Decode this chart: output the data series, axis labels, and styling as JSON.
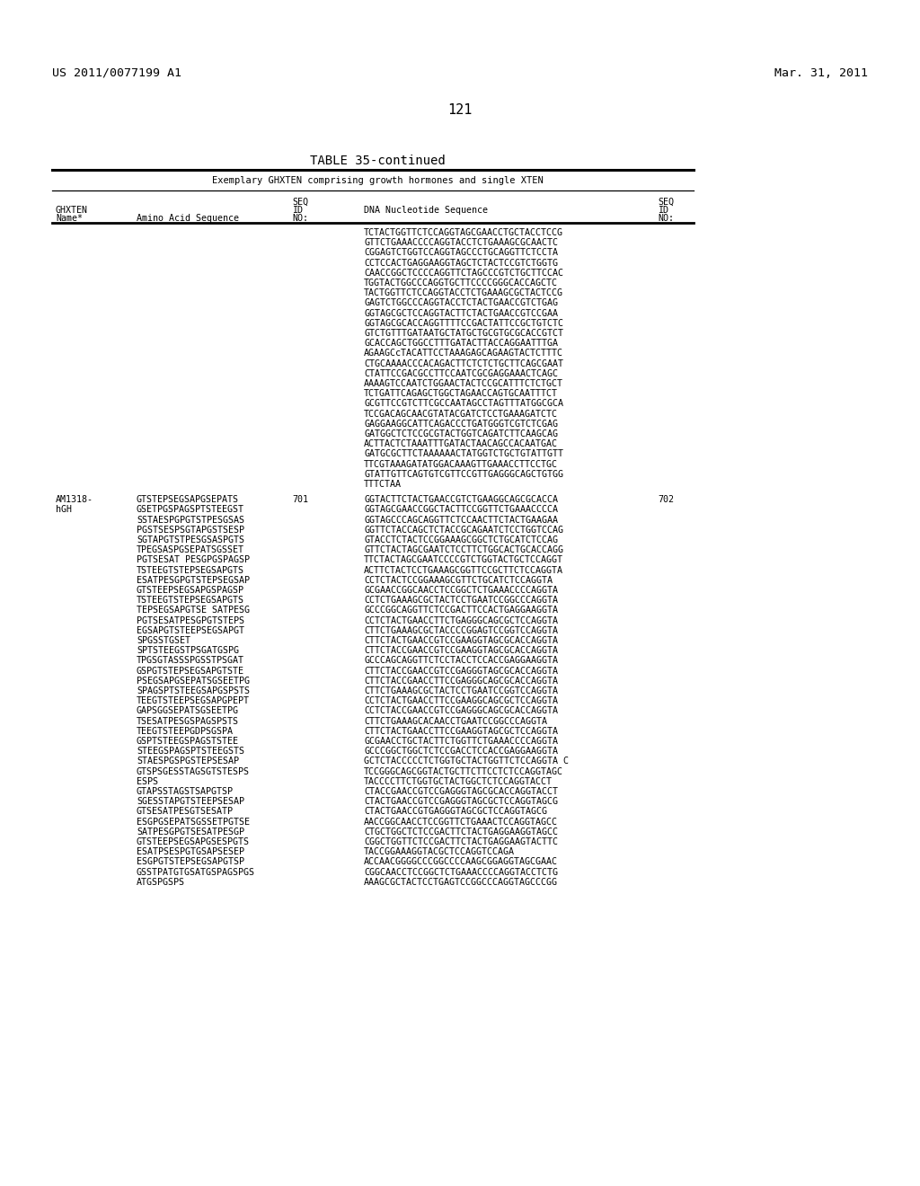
{
  "header_left": "US 2011/0077199 A1",
  "header_right": "Mar. 31, 2011",
  "page_number": "121",
  "table_title": "TABLE 35-continued",
  "table_subtitle": "Exemplary GHXTEN comprising growth hormones and single XTEN",
  "dna_continuation": [
    "TCTACTGGTTCTCCAGGTAGCGAACCTGCTACCTCCG",
    "GTTCTGAAACCCCAGGTACCTCTGAAAGCGCAACTC",
    "CGGAGTCTGGTCCAGGTAGCCCTGCAGGTTCTCCTA",
    "CCTCCACTGAGGAAGGTAGCTCTACTCCGTCTGGTG",
    "CAACCGGCTCCCCAGGTTCTAGCCCGTCTGCTTCCAC",
    "TGGTACTGGCCCAGGTGCTTCCCCGGGCACCAGCTC",
    "TACTGGTTCTCCAGGTACCTCTGAAAGCGCTACTCCG",
    "GAGTCTGGCCCAGGTACCTCTACTGAACCGTCTGAG",
    "GGTAGCGCTCCAGGTACTTCTACTGAACCGTCCGAA",
    "GGTAGCGCACCAGGTTTTCCGACTATTCCGCTGTCTC",
    "GTCTGTTTGATAATGCTATGCTGCGTGCGCACCGTCT",
    "GCACCAGCTGGCCTTTGATACTTACCAGGAATTTGA",
    "AGAAGCcTACATTCCTAAAGAGCAGAAGTACTCTTTC",
    "CTGCAAAACCCACAGACTTCTCTCTGCTTCAGCGAAT",
    "CTATTCCGACGCCTTCCAATCGCGAGGAAACTCAGC",
    "AAAAGTCCAATCTGGAACTACTCCGCATTTCTCTGCT",
    "TCTGATTCAGAGCTGGCTAGAACCAGTGCAATTTCT",
    "GCGTTCCGTCTTCGCCAATAGCCTAGTTTATGGCGCA",
    "TCCGACAGCAACGTATACGATCTCCTGAAAGATCTC",
    "GAGGAAGGCATTCAGACCCTGATGGGTCGTCTCGAG",
    "GATGGCTCTCCGCGTACTGGTCAGATCTTCAAGCAG",
    "ACTTACTCTAAATTTGATACTAACAGCCACAATGAC",
    "GATGCGCTTCTAAAAAACTATGGTCTGCTGTATTGTT",
    "TTCGTAAAGATATGGACAAAGTTGAAACCTTCCTGC",
    "GTATTGTTCAGTGTCGTTCCGTTGAGGGCAGCTGTGG",
    "TTTCTAA"
  ],
  "am1318_aa_lines": [
    "GTSTEPSEGSAPGSEPATS",
    "GSETPGSPAGSPTSTEEGST",
    "SSTAESPGPGTSTPESGSAS",
    "PGSTSESPSGTAPGSTSESP",
    "SGTAPGTSTPESGSASPGTS",
    "TPEGSASPGSEPATSGSSET",
    "PGTSESAT PESGPGSPAGSP",
    "TSTEEGTSTEPSEGSAPGTS",
    "ESATPESGPGTSTEEPSEGSAP",
    "PGTSTEPSEGSAPGSPAGSP",
    "TSTEEGTSTEPSEGSAPGTS",
    "TEPSEGSAPGTSESAT PESG",
    "PGTSESATPESGPGTEPS",
    "EGSAPGTSTEEPSEGSAPGT",
    "SPGSSTGSET",
    "SPTSTEEGSTPSGATGSPG",
    "TPGSGTASSSPGSSTPSGAT",
    "GSPGTSTEEPSEGSAPGTSTE",
    "PSEGSAPGSEPATSGSEETPG",
    "SPAGSPTSTEEG SAPGSPSTS",
    "TEEGTSTEEPSEGSAPGPEPT",
    "GAPSGGSEPATSGSEETPG",
    "TSESATPESGSPAGSPSTS",
    "TEEGTSTEEPGDPSGSPA",
    "GSPTSTEEGSPAGSTSTEE",
    "STEEG SPAGSPGSTSTEE GTS",
    "STAESPGSPGSTEPSESAP",
    "GTSPSGESSTAGSGTSTESPS",
    "ESPS",
    "GTAPSSTAGSTSAPGTSP",
    "SGESSTAPGTSTEEPSEESAP",
    "GTSEESAPEGSEEPATSEETP",
    "ESGPGSEPATSGSTPGTSE",
    "SATPESGPGTSESATPESGP",
    "GTSTEEPSEGSAPGSESPGTS",
    "ESAT PSESPGTGSAPSESEP",
    "ESGPGTSTEEPSEGSAPGTSP",
    "GSSTPATGTGSATGSPAGSPGS",
    "ATGSPGSPS"
  ],
  "am1318_aa_lines_exact": [
    "GTSTEPSEGSAPGSEPATS",
    "GSETPGSPAGSPTSTEEGST",
    "SSTAESPGPGTSTPESGSAS",
    "PGSTSESPSGTAPGSTSESP",
    "SGTAPGTSTPESGSASPGTS",
    "TPEGSASPGSEPATSGSSET",
    "PGTSESAT PESGPGSPAGSP",
    "TSTEEGTSTEPSEGSAPGTS",
    "ESATPESGPGTSTEPSEGS A",
    "PGTSTEPSEGSAPGSPAGSP",
    "TSTEEGTSTEPSEGSAPGTS",
    "TEPSEGSAPGTSE SATPESG",
    "PGTSESATPESGPGTEPS",
    "EGSAPGTSTEEPSEGSAPGT",
    "SPGSSTGSET",
    "SPTSTEEGSTPSGATGSPG",
    "TPGSGTASSSPGSSTPSGAT",
    "GSPGTSTEPSEGSAPGTSTE",
    "PSEGSAPGSEPATSGS ETPG",
    "SPAGSPTSTEEG SAPGSPSTS",
    "TEEGTSTEEPSEGSAPGPEPT",
    "GAPSGGSEPATSGSEE TPG",
    "TSESATPESGSPAGSPSTS",
    "TEEGTSTEEPGDPSGSPA",
    "GSPTSTEEGSPAGSTSTEE",
    "STEEGSPAGSPTSTEEGSTS",
    "STAESPGSPGSTEPSESAP",
    "GTSPSGESSTAGSGTSTESPS",
    "ESPS",
    "GTAPSSTAGSTSAPGTSP",
    "SGESSTAPGTSTEEPSEESAP",
    "GTSEESAPEGSEEPATSEETP",
    "ESGPGSEPATSGSTPGTSE",
    "SATPESGPGTSESATPESGP",
    "GTSTEEPSEGSAPGSESPGTS",
    "ESATPSESPGTGSAPSESEP",
    "ESGPGTSTEEPSEGSAPGTSP",
    "GSSTPATGTGSATGSPAGSPGS",
    "ATGSPGSPS"
  ],
  "am1318_aa_real": [
    "GTSTEPSEGSAPGSEPATS",
    "GSETPGSPAGSPTSTEEGST",
    "SSTAESPGPGTSTPESGSAS",
    "PGSTSESPSGTAPGSTSESP",
    "SGTAPGTSTPESGSASPGTS",
    "TPEGSASPGSEPATSGSSET",
    "PGTSESATPESGPGSPAGSP",
    "TSTEEGTSTEPSEGSAPGTS",
    "ESATPEGPGTSTEPSEGS A",
    "PGTSTEPSEGSAPGSPAGSP",
    "TSTEEGTSTEPSEGSAPGTS",
    "TEPSEGSAPGTSESATPESG",
    "PGTSESATPESGPGTEPS",
    "EGSAPGTSTEEPSEGSAPGT",
    "SPGSSTGSET",
    "SPTSTEEGSTPSGATGSPG",
    "TPGSGTASSSPGSSTPSGAT",
    "GSPGTSTEPSEGSAPGTSTE",
    "PSEGSAPGSEPATSGSEETPG",
    "SPAGSPTSTEEG SAPGSPSTS",
    "TEEGTSTEEPSEGSAPGPEPT",
    "GAPSGGSEPATSGSEETPG",
    "TSESATPESGSPAGSPSTS",
    "TEEGTSTEEPGDPSGSPA",
    "GSPTSTEEGSPAGSTSTEE",
    "STEEGSPAGSPTSTEEGSTS",
    "STAESPGSPGSTEPSESAP",
    "GTSPSGESSTAGSGTSTESPS",
    "ESPS",
    "GTAPSSTAGSTSAPGTSP",
    "SGESSTAPGTSTEEPSEESAP",
    "GTSEESAPEGSEEPATSEETP",
    "ESGPGSEPATSGSTPGTSE",
    "SATPESGPGTSESATPESGP",
    "GTSTEEPSEGSAPGSESPGTS",
    "ESATPSESPGTGSAPSESEP",
    "ESGPGTSTEEPSEGSAPGTSP",
    "GSSTPATGTGSATGSPAGSPGS",
    "ATGSPGSPS"
  ],
  "am1318_dna_lines": [
    "GGTACTTCTACTGAACCGTCTGAAGGCAGCGCACCA",
    "GGTAGCGAACCGGCTACTTTCCGGTTCTGAAACCCCA",
    "GGTAGCCCAGCAGGTTCTCCAACTTCTACTGAAGAA",
    "GGTTCTACCAGCTCTACCGCAGAATCTCCTGGTCCAG",
    "GTACCTCTACTCCGGAAAGCGGCTCTGCATCTCCAG",
    "GTTCTACTAGCGAATCTCCTTCTGGCACTGCACCAGG",
    "TTCTACTAGCGAATCCCCGTCTGGTACTGCTCCAGGT",
    "ACTTCTACTCCTGAAAGCGGTTCCGCTTCTCCAGGTA",
    "CCTCTACTCCGGAAAGCGGTTCTGCATCTCCAGGTA",
    "GCGAACCGGCAACCTCCGGCTCTGAAACCCCAGGTA",
    "CCTCTGAAAGCGCTACTCCTGAATCCGGCCCAGGTA",
    "GCCCGGCAGGTTCTCCGACTTCCACTGAGGAAGGTA",
    "CCTCTACTGAACCTTCTGAGGGCAGCGCTCCAGGTA",
    "CTTCTAAAGCGCTACCCCGGAGTCCGGTCCAGGTA",
    "CTTCTACTGAACCGTCCGAAGGTAGCGCACCAGGTA",
    "CTTCTACTGAACCGTCCGAAGGTAGCGCACCAGGTA",
    "GCCCAGCAGGTTCTCCTACCTCCACCGAGGAAGGTA",
    "CTTCTACCGAACCGTCCGAGGGTAGCGCACCAGGTA",
    "CTTCTACCGAACCTTCCGAGGGCAGCGCACCAGGTA",
    "CTTCTGAAAGCGCTACTCCTGAATCCGGTCCAGGTA",
    "CCTCTACTGAACCTTCCGAAGGCAGCGCTCCAGGTA",
    "CCTCTACCGAACCGTCCGAGGGCAGCGCACCAGGTA",
    "CTTCTGAAAGCGCAACCTGAATCCGGCCCAGGTA",
    "CTTCTACTGAACCTTCCGAAGGTAGCGCTCCAGGTA",
    "GCGAACCTGCTACTTCTGGTTCTGAAACCCCAGGTA",
    "GCCCGGCTGGCTCTCCGACCTCCACCGAGGAAGGTA",
    "GCTCTACCCCCTCTGGTGCTACTGGTTCTCCAGGTAC",
    "TCCGGGCAGCGGTACTGCTTCTTCCTCTCCAGGTAGC",
    "TACCCCTTCTGGTGCTACTGGCTCTCCAGGTACCT",
    "CTACCGAACCGTCCGAGGGTAGCGCACCAGGTACCT",
    "CTACTGAACCGTCCGAGGGTAGCGCTCCAGGTAGCG",
    "CTACTGAACCGTGAGGGTAGCGCTCCAGGTAGCG",
    "AACCGGCAACCTCCGGTTCTGAAACTCCAGGTAGCC",
    "CTGCTGGCTCTCCGACTTCTACTGAGGAAGGTAGCC",
    "CGGCTGGTTCTCCGACTTCTACTGAGGAAGTACTTC",
    "TACCGGAAAGGTACGCTCCAGGTCCAGA",
    "ACCAACGGGGCCCGGCCCCAAGCGGAGGTAGCGAAC",
    "CGGCAACCTCCGGCTCTGAAACCCCAGGTACCTCTG",
    "AAAGCGCTACTCCTGAGTCCGGCCCAGGTAGCCCGG"
  ],
  "background_color": "#ffffff",
  "text_color": "#000000",
  "font_size_header": 9.5,
  "font_size_body": 7.2,
  "font_size_page_num": 11.0,
  "font_size_table_title": 10.0
}
